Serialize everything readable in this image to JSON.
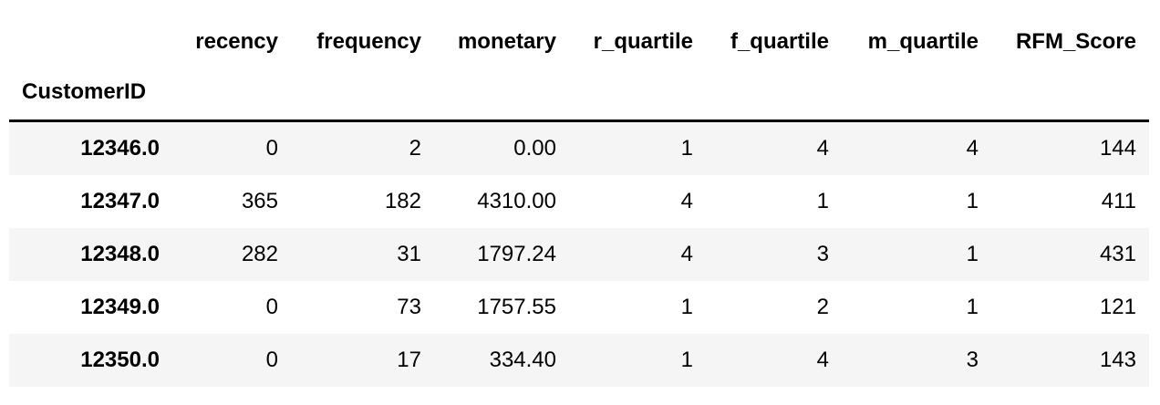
{
  "table": {
    "columns": [
      "recency",
      "frequency",
      "monetary",
      "r_quartile",
      "f_quartile",
      "m_quartile",
      "RFM_Score"
    ],
    "index_name": "CustomerID",
    "rows": [
      {
        "index": "12346.0",
        "values": [
          "0",
          "2",
          "0.00",
          "1",
          "4",
          "4",
          "144"
        ]
      },
      {
        "index": "12347.0",
        "values": [
          "365",
          "182",
          "4310.00",
          "4",
          "1",
          "1",
          "411"
        ]
      },
      {
        "index": "12348.0",
        "values": [
          "282",
          "31",
          "1797.24",
          "4",
          "3",
          "1",
          "431"
        ]
      },
      {
        "index": "12349.0",
        "values": [
          "0",
          "73",
          "1757.55",
          "1",
          "2",
          "1",
          "121"
        ]
      },
      {
        "index": "12350.0",
        "values": [
          "0",
          "17",
          "334.40",
          "1",
          "4",
          "3",
          "143"
        ]
      }
    ]
  },
  "colors": {
    "stripe": "#f5f5f5",
    "background": "#ffffff",
    "text": "#000000"
  }
}
